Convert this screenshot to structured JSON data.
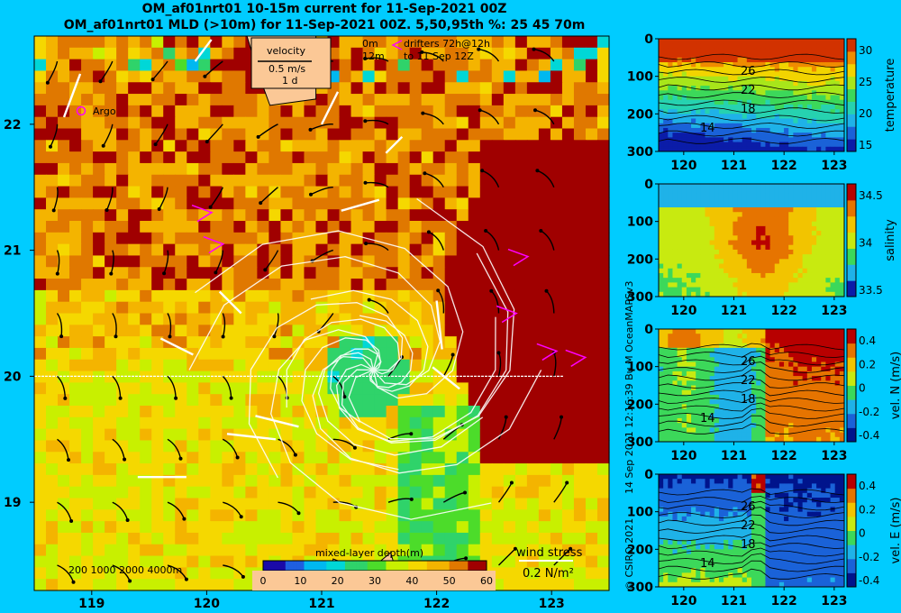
{
  "titles": {
    "line1": "OM_af01nrt01 10-15m current for 11-Sep-2021 00Z",
    "line2": "OM_af01nrt01 MLD (>10m) for 11-Sep-2021 00Z. 5,50,95th %: 25  45  70m"
  },
  "legend": {
    "velocity": "velocity",
    "speed": "0.5 m/s",
    "duration": "1 d",
    "depth0": "0m",
    "depth12": "12m",
    "drifters": "drifters 72h@12h",
    "drifters_to": "to 11 Sep 12Z",
    "argo": "Argo",
    "wind_label": "wind stress",
    "wind_value": "0.2 N/m²",
    "bathy_levels": "200  1000  2000  4000m",
    "mld_label": "mixed-layer depth(m)"
  },
  "credits": {
    "date": "14 Sep 2021 12:16:39 Bu M OceanMAPSv3",
    "copyright": "© CSIRO 2021"
  },
  "colors": {
    "background": "#00ccff",
    "mld_scale": [
      "#1a0aa8",
      "#1f5fe0",
      "#00b8f0",
      "#00d7d7",
      "#2fd36a",
      "#4cdc2a",
      "#c8f000",
      "#f5d800",
      "#f4b400",
      "#e07800",
      "#a00000"
    ],
    "arrows": "#000000",
    "drifters": "#ffffff",
    "wind": "#ffffff",
    "argo": "#ff00ff",
    "cross_section_line": "#ffffff",
    "contour": "#000000"
  },
  "chart_data": [
    {
      "type": "heatmap",
      "name": "map",
      "xlim": [
        118.5,
        123.5
      ],
      "ylim": [
        18.3,
        22.7
      ],
      "x_ticks": [
        "119",
        "120",
        "121",
        "122",
        "123"
      ],
      "y_ticks": [
        "19",
        "20",
        "21",
        "22"
      ],
      "x_tick_values": [
        119,
        120,
        121,
        122,
        123
      ],
      "y_tick_values": [
        19,
        20,
        21,
        22
      ],
      "colorbar_ticks": [
        "0",
        "10",
        "20",
        "30",
        "40",
        "50",
        "60"
      ],
      "colorbar_range": [
        0,
        60
      ],
      "cross_section_lat": 20
    },
    {
      "type": "heatmap",
      "name": "temperature",
      "ylabel": "temperature",
      "xlim": [
        119.5,
        123.2
      ],
      "ylim": [
        300,
        0
      ],
      "x_ticks": [
        "120",
        "121",
        "122",
        "123"
      ],
      "y_ticks": [
        "0",
        "100",
        "200",
        "300"
      ],
      "cb_ticks": [
        "30",
        "25",
        "20",
        "15"
      ],
      "contour_labels": [
        "26",
        "22",
        "18",
        "14"
      ]
    },
    {
      "type": "heatmap",
      "name": "salinity",
      "ylabel": "salinity",
      "xlim": [
        119.5,
        123.2
      ],
      "ylim": [
        300,
        0
      ],
      "x_ticks": [
        "120",
        "121",
        "122",
        "123"
      ],
      "y_ticks": [
        "0",
        "100",
        "200",
        "300"
      ],
      "cb_ticks": [
        "34.5",
        "34",
        "33.5"
      ]
    },
    {
      "type": "heatmap",
      "name": "vel_n",
      "ylabel": "vel. N (m/s)",
      "xlim": [
        119.5,
        123.2
      ],
      "ylim": [
        300,
        0
      ],
      "x_ticks": [
        "120",
        "121",
        "122",
        "123"
      ],
      "y_ticks": [
        "0",
        "100",
        "200",
        "300"
      ],
      "cb_ticks": [
        "0.4",
        "0.2",
        "0",
        "-0.2",
        "-0.4"
      ],
      "contour_labels": [
        "26",
        "22",
        "18",
        "14"
      ]
    },
    {
      "type": "heatmap",
      "name": "vel_e",
      "ylabel": "vel. E (m/s)",
      "xlim": [
        119.5,
        123.2
      ],
      "ylim": [
        300,
        0
      ],
      "x_ticks": [
        "120",
        "121",
        "122",
        "123"
      ],
      "y_ticks": [
        "0",
        "100",
        "200",
        "300"
      ],
      "cb_ticks": [
        "0.4",
        "0.2",
        "0",
        "-0.2",
        "-0.4"
      ],
      "contour_labels": [
        "26",
        "22",
        "18",
        "14"
      ]
    }
  ]
}
